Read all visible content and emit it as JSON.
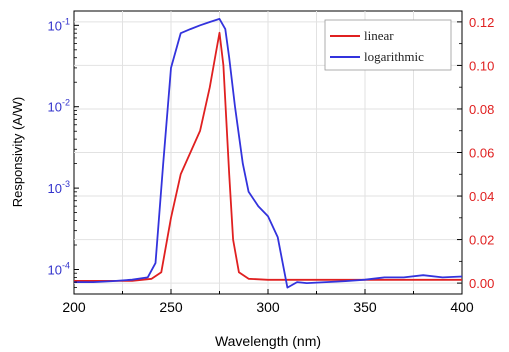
{
  "chart_data": {
    "type": "line",
    "xlabel": "Wavelength (nm)",
    "ylabel_left": "Responsivity (A/W)",
    "xlim": [
      200,
      400
    ],
    "x_ticks": [
      200,
      250,
      300,
      350,
      400
    ],
    "left_axis": {
      "scale": "log",
      "range": [
        5e-05,
        0.15
      ],
      "color": "#3333cc",
      "ticks": [
        {
          "value": 0.1,
          "exp": "-1"
        },
        {
          "value": 0.01,
          "exp": "-2"
        },
        {
          "value": 0.001,
          "exp": "-3"
        },
        {
          "value": 0.0001,
          "exp": "-4"
        }
      ]
    },
    "right_axis": {
      "scale": "linear",
      "range": [
        -0.005,
        0.125
      ],
      "color": "#e02020",
      "ticks": [
        "0.00",
        "0.02",
        "0.04",
        "0.06",
        "0.08",
        "0.10",
        "0.12"
      ]
    },
    "grid": true,
    "legend_position": "top-right",
    "series": [
      {
        "name": "linear",
        "axis": "right",
        "color": "#e02020",
        "x": [
          200,
          210,
          220,
          230,
          240,
          245,
          250,
          255,
          260,
          265,
          270,
          273,
          275,
          277,
          280,
          282,
          285,
          290,
          300,
          310,
          320,
          330,
          340,
          350,
          360,
          370,
          380,
          390,
          400
        ],
        "y": [
          0.001,
          0.001,
          0.001,
          0.001,
          0.002,
          0.005,
          0.03,
          0.05,
          0.06,
          0.07,
          0.09,
          0.105,
          0.115,
          0.1,
          0.05,
          0.02,
          0.005,
          0.002,
          0.0015,
          0.0015,
          0.0015,
          0.0015,
          0.0015,
          0.0015,
          0.0015,
          0.0015,
          0.0015,
          0.0015,
          0.0015
        ]
      },
      {
        "name": "logarithmic",
        "axis": "left",
        "color": "#3333dd",
        "x": [
          200,
          210,
          220,
          230,
          238,
          242,
          246,
          250,
          255,
          260,
          265,
          270,
          275,
          278,
          280,
          283,
          287,
          290,
          295,
          300,
          305,
          310,
          315,
          320,
          330,
          340,
          350,
          360,
          370,
          380,
          390,
          400
        ],
        "y": [
          7e-05,
          7e-05,
          7.2e-05,
          7.5e-05,
          8e-05,
          0.00012,
          0.002,
          0.03,
          0.08,
          0.09,
          0.1,
          0.11,
          0.12,
          0.09,
          0.04,
          0.01,
          0.002,
          0.0009,
          0.0006,
          0.00045,
          0.00025,
          6e-05,
          7e-05,
          6.8e-05,
          7e-05,
          7.2e-05,
          7.5e-05,
          8e-05,
          8e-05,
          8.5e-05,
          8e-05,
          8.2e-05
        ]
      }
    ]
  }
}
